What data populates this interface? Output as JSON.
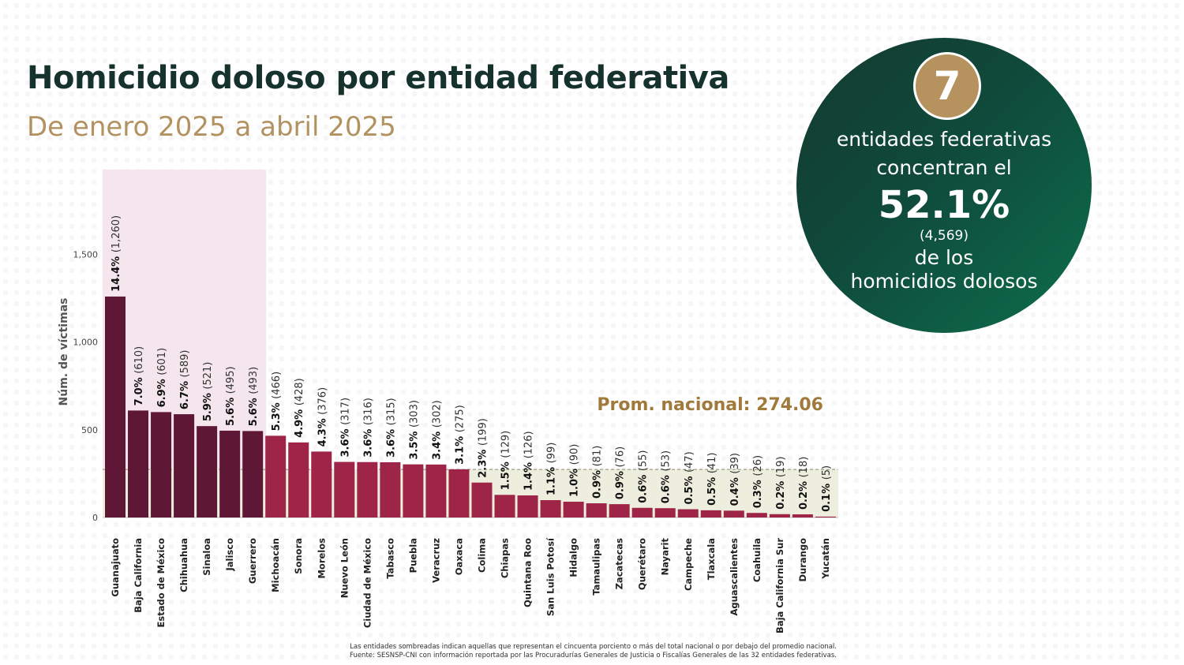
{
  "title": "Homicidio doloso por entidad federativa",
  "subtitle": "De enero 2025 a abril 2025",
  "callout": {
    "number": "7",
    "line1": "entidades federativas",
    "line2": "concentran el",
    "percent": "52.1%",
    "count": "(4,569)",
    "line3": "de los",
    "line4": "homicidios dolosos"
  },
  "footnote": {
    "line1": "Las entidades sombreadas indican aquellas que representan el cincuenta porciento o más del total nacional o por debajo del promedio nacional.",
    "line2": "Fuente: SESNSP-CNI con información reportada por las Procuradurías Generales de Justicia o Fiscalías Generales de las 32 entidades federativas."
  },
  "colors": {
    "bar_top": "#5e1735",
    "bar_rest": "#9e2448",
    "highlight_top": "#f4e6ec",
    "highlight_below_avg": "#eeeedf",
    "avg_label": "#a07a3b",
    "title": "#16322c",
    "subtitle": "#b39261"
  },
  "chart_data": {
    "type": "bar",
    "ylabel": "Núm. de víctimas",
    "ylim": [
      0,
      1800
    ],
    "yticks": [
      0,
      500,
      1000,
      1500
    ],
    "ytick_labels": [
      "0",
      "500",
      "1,000",
      "1,500"
    ],
    "categories": [
      "Guanajuato",
      "Baja California",
      "Estado de México",
      "Chihuahua",
      "Sinaloa",
      "Jalisco",
      "Guerrero",
      "Michoacán",
      "Sonora",
      "Morelos",
      "Nuevo León",
      "Ciudad de México",
      "Tabasco",
      "Puebla",
      "Veracruz",
      "Oaxaca",
      "Colima",
      "Chiapas",
      "Quintana Roo",
      "San Luis Potosí",
      "Hidalgo",
      "Tamaulipas",
      "Zacatecas",
      "Querétaro",
      "Nayarit",
      "Campeche",
      "Tlaxcala",
      "Aguascalientes",
      "Coahuila",
      "Baja California Sur",
      "Durango",
      "Yucatán"
    ],
    "values": [
      1260,
      610,
      601,
      589,
      521,
      495,
      493,
      466,
      428,
      376,
      317,
      316,
      315,
      303,
      302,
      275,
      199,
      129,
      126,
      99,
      90,
      81,
      76,
      55,
      53,
      47,
      41,
      39,
      26,
      19,
      18,
      5
    ],
    "percent_labels": [
      "14.4%",
      "7.0%",
      "6.9%",
      "6.7%",
      "5.9%",
      "5.6%",
      "5.6%",
      "5.3%",
      "4.9%",
      "4.3%",
      "3.6%",
      "3.6%",
      "3.6%",
      "3.5%",
      "3.4%",
      "3.1%",
      "2.3%",
      "1.5%",
      "1.4%",
      "1.1%",
      "1.0%",
      "0.9%",
      "0.9%",
      "0.6%",
      "0.6%",
      "0.5%",
      "0.5%",
      "0.4%",
      "0.3%",
      "0.2%",
      "0.2%",
      "0.1%"
    ],
    "count_labels": [
      "(1,260)",
      "(610)",
      "(601)",
      "(589)",
      "(521)",
      "(495)",
      "(493)",
      "(466)",
      "(428)",
      "(376)",
      "(317)",
      "(316)",
      "(315)",
      "(303)",
      "(302)",
      "(275)",
      "(199)",
      "(129)",
      "(126)",
      "(99)",
      "(90)",
      "(81)",
      "(76)",
      "(55)",
      "(53)",
      "(47)",
      "(41)",
      "(39)",
      "(26)",
      "(19)",
      "(18)",
      "(5)"
    ],
    "top_group_count": 7,
    "average_value": 274.06,
    "average_label": "Prom. nacional: 274.06"
  }
}
